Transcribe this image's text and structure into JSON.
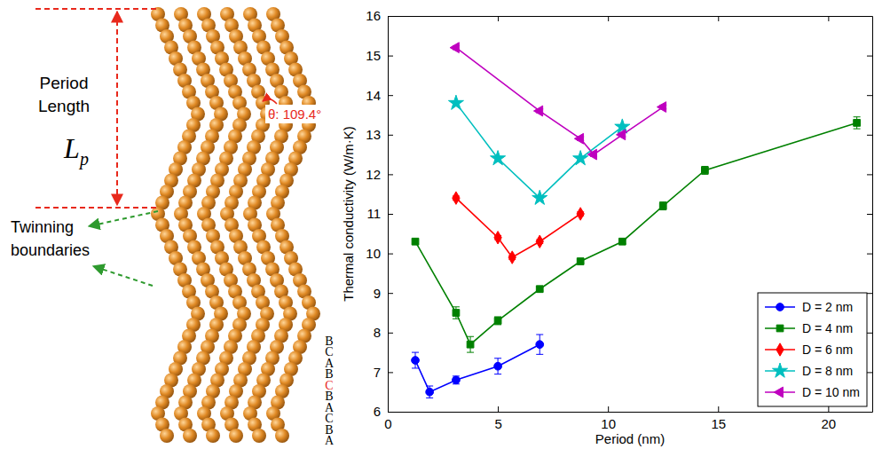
{
  "chart_data": {
    "type": "line",
    "x_label": "Period (nm)",
    "y_label": "Thermal conductivity (W/m·K)",
    "xlim": [
      0,
      22
    ],
    "ylim": [
      6,
      16
    ],
    "xticks": [
      0,
      5,
      10,
      15,
      20
    ],
    "yticks": [
      6,
      7,
      8,
      9,
      10,
      11,
      12,
      13,
      14,
      15,
      16
    ],
    "grid": false,
    "legend": "lower right",
    "series": [
      {
        "name": "D = 2 nm",
        "color": "#0000ff",
        "marker": "circle",
        "x": [
          1.25,
          1.9,
          3.1,
          5.0,
          6.9
        ],
        "values": [
          7.3,
          6.5,
          6.8,
          7.15,
          7.7
        ],
        "errors": [
          0.2,
          0.15,
          0.1,
          0.2,
          0.25
        ]
      },
      {
        "name": "D = 4 nm",
        "color": "#008000",
        "marker": "square",
        "x": [
          1.25,
          3.1,
          3.75,
          5.0,
          6.9,
          8.75,
          10.65,
          12.5,
          14.4,
          21.3
        ],
        "values": [
          10.3,
          8.5,
          7.7,
          8.3,
          9.1,
          9.8,
          10.3,
          11.2,
          12.1,
          13.3
        ],
        "errors": [
          0.05,
          0.15,
          0.2,
          0.1,
          0.05,
          0.05,
          0.05,
          0.1,
          0.1,
          0.15
        ]
      },
      {
        "name": "D = 6 nm",
        "color": "#ff0000",
        "marker": "diamond",
        "x": [
          3.1,
          5.0,
          5.65,
          6.9,
          8.75
        ],
        "values": [
          11.4,
          10.4,
          9.9,
          10.3,
          11.0
        ],
        "errors": [
          0.05,
          0.05,
          0.05,
          0.05,
          0.05
        ]
      },
      {
        "name": "D = 8 nm",
        "color": "#00bfbf",
        "marker": "star",
        "x": [
          3.1,
          5.0,
          6.9,
          8.75,
          10.65
        ],
        "values": [
          13.8,
          12.4,
          11.4,
          12.4,
          13.2
        ],
        "errors": [
          0.05,
          0.05,
          0.05,
          0.05,
          0.05
        ]
      },
      {
        "name": "D = 10 nm",
        "color": "#bf00bf",
        "marker": "triangle-left",
        "x": [
          3.1,
          6.9,
          8.75,
          9.35,
          10.65,
          12.5
        ],
        "values": [
          15.2,
          13.6,
          12.9,
          12.5,
          13.0,
          13.7
        ],
        "errors": [
          0.05,
          0.05,
          0.05,
          0.05,
          0.05,
          0.05
        ]
      }
    ]
  },
  "diagram": {
    "period_label": [
      "Period",
      "Length"
    ],
    "symbol": "L",
    "symbol_sub": "p",
    "angle_label": "θ: 109.4°",
    "boundary_label": [
      "Twinning",
      "boundaries"
    ],
    "stacking": [
      {
        "text": "B",
        "color": "#000000"
      },
      {
        "text": "C",
        "color": "#000000"
      },
      {
        "text": "A",
        "color": "#000000"
      },
      {
        "text": "B",
        "color": "#000000"
      },
      {
        "text": "C",
        "color": "#e8291c"
      },
      {
        "text": "B",
        "color": "#000000"
      },
      {
        "text": "A",
        "color": "#000000"
      },
      {
        "text": "C",
        "color": "#000000"
      },
      {
        "text": "B",
        "color": "#000000"
      },
      {
        "text": "A",
        "color": "#000000"
      }
    ]
  }
}
